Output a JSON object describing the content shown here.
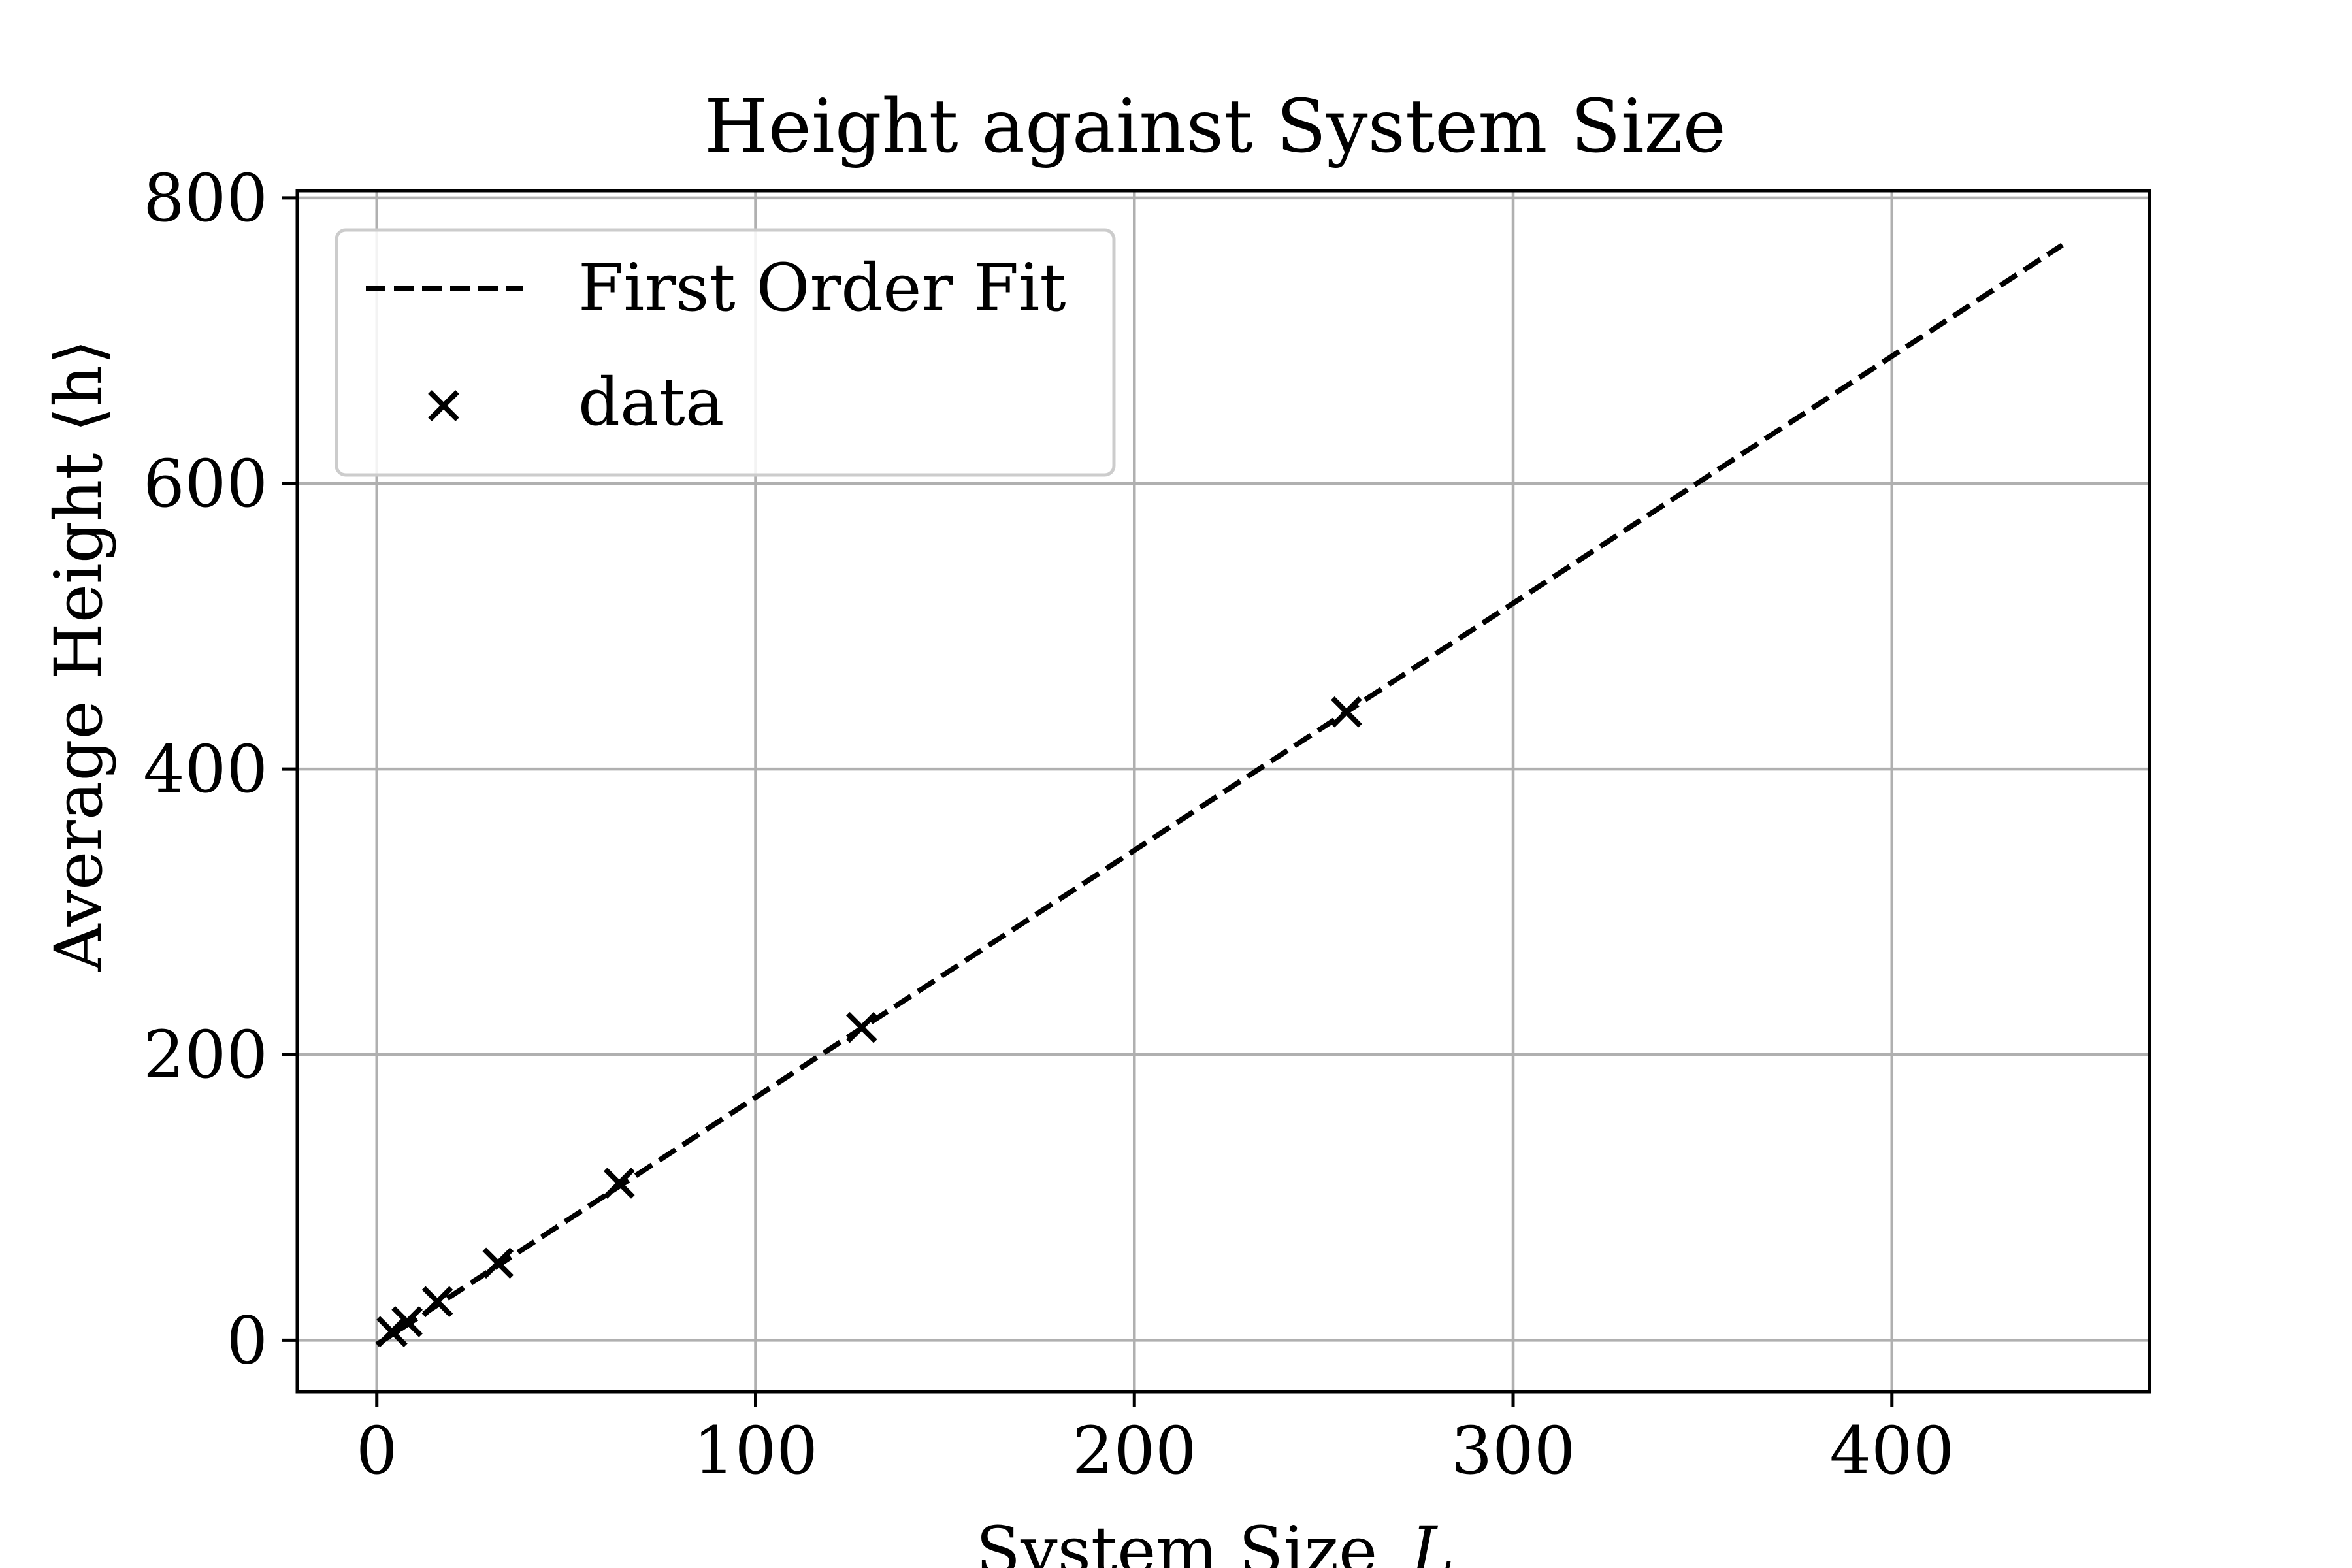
{
  "chart_data": {
    "type": "scatter",
    "title": "Height against System Size",
    "xlabel": "System Size",
    "xlabel_var": "L",
    "ylabel": "Average Height ⟨h⟩",
    "xlim": [
      -21,
      468
    ],
    "ylim": [
      -36,
      805
    ],
    "xticks": [
      0,
      100,
      200,
      300,
      400
    ],
    "yticks": [
      0,
      200,
      400,
      600,
      800
    ],
    "grid": true,
    "legend_position": "upper-left",
    "series": [
      {
        "name": "First Order Fit",
        "kind": "line",
        "style": "dashed",
        "color": "#000000",
        "x": [
          0,
          445
        ],
        "y": [
          -3,
          767
        ]
      },
      {
        "name": "data",
        "kind": "scatter",
        "marker": "x",
        "color": "#000000",
        "x": [
          4,
          8,
          16,
          32,
          64,
          128,
          256
        ],
        "y": [
          6,
          13,
          27,
          54,
          110,
          219,
          440
        ]
      }
    ]
  }
}
